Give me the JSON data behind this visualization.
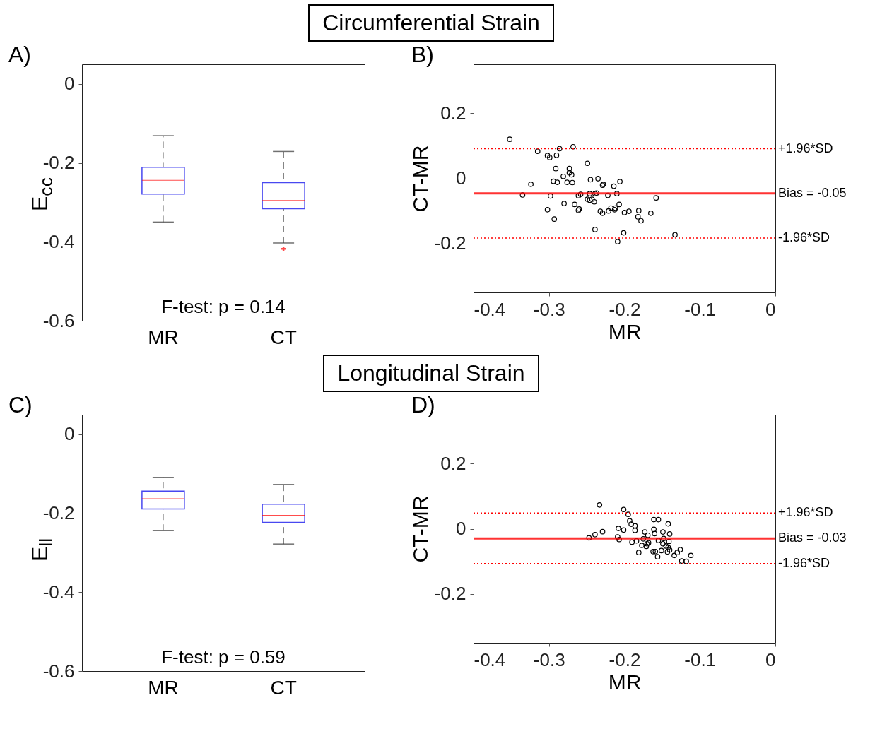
{
  "chart_data": [
    {
      "type": "box",
      "title": "Circumferential Strain",
      "ylabel": "E$_{cc}$",
      "categories": [
        "MR",
        "CT"
      ],
      "ylim": [
        -0.6,
        0.05
      ],
      "yticks": [
        -0.6,
        -0.4,
        -0.2,
        0
      ],
      "annotations": [
        "A)",
        "F-test: p = 0.14"
      ],
      "series": [
        {
          "color": "#4848f0",
          "boxes": [
            {
              "low": -0.35,
              "q1": -0.279,
              "median": -0.244,
              "q3": -0.211,
              "high": -0.131
            },
            {
              "low": -0.403,
              "q1": -0.316,
              "median": -0.295,
              "q3": -0.25,
              "high": -0.171,
              "outliers": [
                -0.418
              ]
            }
          ]
        }
      ]
    },
    {
      "type": "scatter",
      "xlabel": "MR",
      "ylabel": "CT-MR",
      "xlim": [
        -0.4,
        0
      ],
      "xticks": [
        -0.4,
        -0.3,
        -0.2,
        -0.1,
        0
      ],
      "ylim": [
        -0.35,
        0.35
      ],
      "yticks": [
        -0.2,
        0,
        0.2
      ],
      "marker": "circle",
      "annotations": [
        "B)"
      ],
      "ref_lines": [
        {
          "axis": "y",
          "value": 0.091,
          "label": "+1.96*SD",
          "color": "#ff0000",
          "line_style": "dotted"
        },
        {
          "axis": "y",
          "value": -0.046,
          "label": "Bias = -0.05",
          "color": "#ff0000",
          "line_style": "solid"
        },
        {
          "axis": "y",
          "value": -0.183,
          "label": "-1.96*SD",
          "color": "#ff0000",
          "line_style": "dotted"
        }
      ],
      "series": [
        {
          "color": "#000000",
          "x": [
            -0.352,
            -0.335,
            -0.324,
            -0.315,
            -0.302,
            -0.299,
            -0.302,
            -0.298,
            -0.294,
            -0.293,
            -0.29,
            -0.291,
            -0.289,
            -0.286,
            -0.281,
            -0.28,
            -0.276,
            -0.273,
            -0.273,
            -0.27,
            -0.269,
            -0.268,
            -0.266,
            -0.261,
            -0.26,
            -0.261,
            -0.258,
            -0.249,
            -0.249,
            -0.246,
            -0.246,
            -0.245,
            -0.243,
            -0.24,
            -0.239,
            -0.237,
            -0.239,
            -0.235,
            -0.232,
            -0.229,
            -0.229,
            -0.228,
            -0.222,
            -0.221,
            -0.218,
            -0.214,
            -0.213,
            -0.212,
            -0.21,
            -0.209,
            -0.207,
            -0.206,
            -0.201,
            -0.2,
            -0.194,
            -0.181,
            -0.182,
            -0.178,
            -0.165,
            -0.158,
            -0.133
          ],
          "values": [
            0.12,
            -0.051,
            -0.018,
            0.083,
            0.07,
            0.064,
            -0.096,
            -0.054,
            -0.009,
            -0.125,
            0.071,
            0.03,
            -0.012,
            0.091,
            0.006,
            -0.077,
            -0.012,
            0.03,
            0.017,
            0.011,
            -0.013,
            0.097,
            -0.08,
            -0.098,
            -0.094,
            -0.053,
            -0.049,
            0.046,
            -0.064,
            -0.067,
            -0.047,
            -0.004,
            -0.064,
            -0.072,
            -0.047,
            -0.045,
            -0.157,
            -0.001,
            -0.101,
            -0.107,
            -0.021,
            -0.018,
            -0.052,
            -0.1,
            -0.091,
            -0.024,
            -0.096,
            -0.091,
            -0.047,
            -0.194,
            -0.08,
            -0.01,
            -0.167,
            -0.105,
            -0.101,
            -0.099,
            -0.118,
            -0.13,
            -0.107,
            -0.06,
            -0.173
          ]
        }
      ]
    },
    {
      "type": "box",
      "title": "Longitudinal Strain",
      "ylabel": "E$_{ll}$",
      "categories": [
        "MR",
        "CT"
      ],
      "ylim": [
        -0.6,
        0.05
      ],
      "yticks": [
        -0.6,
        -0.4,
        -0.2,
        0
      ],
      "annotations": [
        "C)",
        "F-test: p = 0.59"
      ],
      "series": [
        {
          "color": "#4848f0",
          "boxes": [
            {
              "low": -0.244,
              "q1": -0.189,
              "median": -0.163,
              "q3": -0.144,
              "high": -0.109
            },
            {
              "low": -0.278,
              "q1": -0.223,
              "median": -0.205,
              "q3": -0.177,
              "high": -0.127
            }
          ]
        }
      ]
    },
    {
      "type": "scatter",
      "xlabel": "MR",
      "ylabel": "CT-MR",
      "xlim": [
        -0.4,
        0
      ],
      "xticks": [
        -0.4,
        -0.3,
        -0.2,
        -0.1,
        0
      ],
      "ylim": [
        -0.35,
        0.35
      ],
      "yticks": [
        -0.2,
        0,
        0.2
      ],
      "marker": "circle",
      "annotations": [
        "D)"
      ],
      "ref_lines": [
        {
          "axis": "y",
          "value": 0.048,
          "label": "+1.96*SD",
          "color": "#ff0000",
          "line_style": "dotted"
        },
        {
          "axis": "y",
          "value": -0.03,
          "label": "Bias = -0.03",
          "color": "#ff0000",
          "line_style": "solid"
        },
        {
          "axis": "y",
          "value": -0.107,
          "label": "-1.96*SD",
          "color": "#ff0000",
          "line_style": "dotted"
        }
      ],
      "series": [
        {
          "color": "#000000",
          "x": [
            -0.247,
            -0.239,
            -0.229,
            -0.233,
            -0.209,
            -0.207,
            -0.208,
            -0.201,
            -0.201,
            -0.195,
            -0.193,
            -0.191,
            -0.186,
            -0.186,
            -0.19,
            -0.184,
            -0.181,
            -0.177,
            -0.175,
            -0.173,
            -0.171,
            -0.17,
            -0.168,
            -0.169,
            -0.162,
            -0.159,
            -0.161,
            -0.155,
            -0.161,
            -0.16,
            -0.156,
            -0.155,
            -0.151,
            -0.149,
            -0.149,
            -0.148,
            -0.145,
            -0.143,
            -0.142,
            -0.141,
            -0.142,
            -0.14,
            -0.14,
            -0.134,
            -0.13,
            -0.126,
            -0.124,
            -0.118,
            -0.112
          ],
          "values": [
            -0.028,
            -0.018,
            -0.009,
            0.073,
            -0.025,
            -0.033,
            0.001,
            -0.004,
            0.059,
            0.044,
            0.024,
            0.014,
            0.009,
            -0.005,
            -0.041,
            -0.037,
            -0.073,
            -0.051,
            -0.031,
            -0.01,
            -0.054,
            -0.046,
            -0.043,
            -0.02,
            -0.07,
            -0.07,
            0.028,
            0.028,
            -0.002,
            -0.015,
            -0.086,
            -0.036,
            -0.067,
            -0.046,
            -0.01,
            -0.03,
            -0.053,
            -0.071,
            0.015,
            -0.039,
            -0.057,
            -0.016,
            -0.065,
            -0.082,
            -0.073,
            -0.064,
            -0.099,
            -0.1,
            -0.082
          ]
        }
      ]
    }
  ]
}
